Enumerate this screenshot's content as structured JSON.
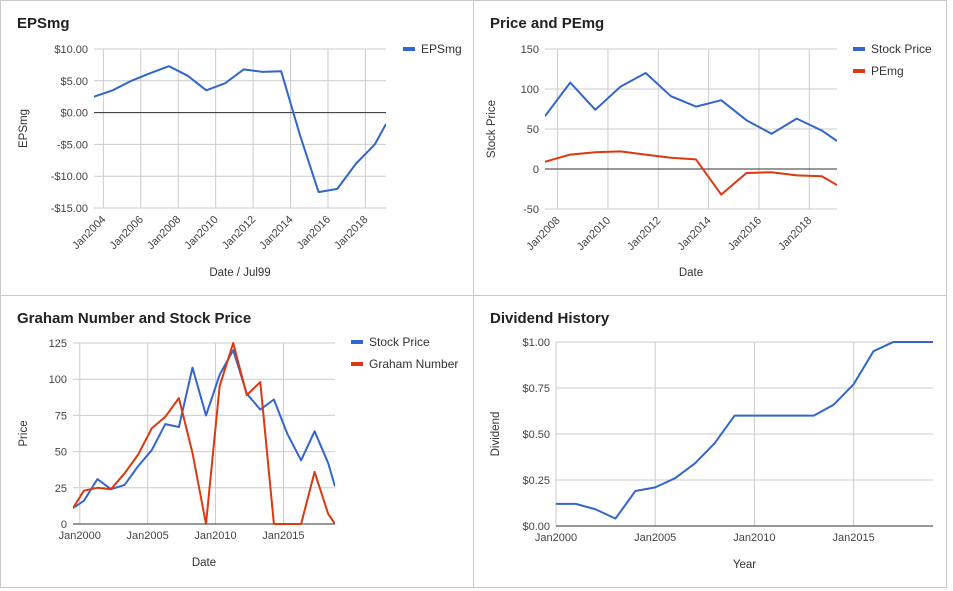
{
  "colors": {
    "blue": "#3366cc",
    "red": "#dc3912"
  },
  "chart_data": [
    {
      "type": "line",
      "title": "EPSmg",
      "xlabel": "Date / Jul99",
      "ylabel": "EPSmg",
      "ylim": [
        -15,
        10
      ],
      "xlim": [
        2003.5,
        2019.1
      ],
      "yticks": [
        10,
        5,
        0,
        -5,
        -10,
        -15
      ],
      "ytick_labels": [
        "$10.00",
        "$5.00",
        "$0.00",
        "-$5.00",
        "-$10.00",
        "-$15.00"
      ],
      "xticks": [
        2004,
        2006,
        2008,
        2010,
        2012,
        2014,
        2016,
        2018
      ],
      "xtick_labels": [
        "Jan2004",
        "Jan2006",
        "Jan2008",
        "Jan2010",
        "Jan2012",
        "Jan2014",
        "Jan2016",
        "Jan2018"
      ],
      "grid": true,
      "legend": "right",
      "series": [
        {
          "name": "EPSmg",
          "color": "#3366cc",
          "x": [
            2003.5,
            2004.5,
            2005.5,
            2006.5,
            2007.5,
            2008.5,
            2009.5,
            2010.5,
            2011.5,
            2012.5,
            2013.5,
            2014.5,
            2015.5,
            2016.5,
            2017.5,
            2018.5,
            2019.1
          ],
          "y": [
            2.5,
            3.5,
            5.0,
            6.2,
            7.3,
            5.8,
            3.5,
            4.6,
            6.8,
            6.4,
            6.5,
            -3.5,
            -12.5,
            -12.0,
            -8.0,
            -5.0,
            -1.8
          ]
        }
      ]
    },
    {
      "type": "line",
      "title": "Price and PEmg",
      "xlabel": "Date",
      "ylabel": "Stock Price",
      "ylim": [
        -50,
        150
      ],
      "xlim": [
        2007.5,
        2019.1
      ],
      "yticks": [
        150,
        100,
        50,
        0,
        -50
      ],
      "ytick_labels": [
        "150",
        "100",
        "50",
        "0",
        "-50"
      ],
      "xticks": [
        2008,
        2010,
        2012,
        2014,
        2016,
        2018
      ],
      "xtick_labels": [
        "Jan2008",
        "Jan2010",
        "Jan2012",
        "Jan2014",
        "Jan2016",
        "Jan2018"
      ],
      "grid": true,
      "legend": "right",
      "series": [
        {
          "name": "Stock Price",
          "color": "#3366cc",
          "x": [
            2007.5,
            2008.5,
            2009.5,
            2010.5,
            2011.5,
            2012.5,
            2013.5,
            2014.5,
            2015.5,
            2016.5,
            2017.5,
            2018.5,
            2019.1
          ],
          "y": [
            66,
            108,
            74,
            103,
            120,
            91,
            78,
            86,
            61,
            44,
            63,
            48,
            35
          ]
        },
        {
          "name": "PEmg",
          "color": "#dc3912",
          "x": [
            2007.5,
            2008.5,
            2009.5,
            2010.5,
            2011.5,
            2012.5,
            2013.5,
            2014.5,
            2015.5,
            2016.5,
            2017.5,
            2018.5,
            2019.1
          ],
          "y": [
            9,
            18,
            21,
            22,
            18,
            14,
            12,
            -32,
            -5,
            -4,
            -8,
            -9,
            -20
          ]
        }
      ]
    },
    {
      "type": "line",
      "title": "Graham Number and Stock Price",
      "xlabel": "Date",
      "ylabel": "Price",
      "ylim": [
        0,
        125
      ],
      "xlim": [
        1999.5,
        2018.8
      ],
      "yticks": [
        125,
        100,
        75,
        50,
        25,
        0
      ],
      "ytick_labels": [
        "125",
        "100",
        "75",
        "50",
        "25",
        "0"
      ],
      "xticks": [
        2000,
        2005,
        2010,
        2015
      ],
      "xtick_labels": [
        "Jan2000",
        "Jan2005",
        "Jan2010",
        "Jan2015"
      ],
      "grid": true,
      "legend": "right",
      "series": [
        {
          "name": "Stock Price",
          "color": "#3366cc",
          "x": [
            1999.5,
            2000.3,
            2001.3,
            2002.3,
            2003.3,
            2004.3,
            2005.3,
            2006.3,
            2007.3,
            2008.3,
            2009.3,
            2010.3,
            2011.3,
            2012.3,
            2013.3,
            2014.3,
            2015.3,
            2016.3,
            2017.3,
            2018.3,
            2018.8
          ],
          "y": [
            11,
            16,
            31,
            24,
            27,
            40,
            51,
            69,
            67,
            108,
            75,
            103,
            120,
            90,
            79,
            86,
            62,
            44,
            64,
            42,
            26
          ]
        },
        {
          "name": "Graham Number",
          "color": "#dc3912",
          "x": [
            1999.5,
            2000.3,
            2001.3,
            2002.3,
            2003.3,
            2004.3,
            2005.3,
            2006.3,
            2007.3,
            2008.3,
            2009.3,
            2010.3,
            2011.3,
            2012.3,
            2013.3,
            2014.3,
            2015.3,
            2016.3,
            2017.3,
            2018.3,
            2018.8
          ],
          "y": [
            11,
            23,
            25,
            24,
            35,
            48,
            66,
            74,
            87,
            49,
            0,
            95,
            125,
            89,
            98,
            0,
            0,
            0,
            36,
            7,
            0
          ]
        }
      ]
    },
    {
      "type": "line",
      "title": "Dividend History",
      "xlabel": "Year",
      "ylabel": "Dividend",
      "ylim": [
        0,
        1
      ],
      "xlim": [
        2000,
        2019
      ],
      "yticks": [
        1,
        0.75,
        0.5,
        0.25,
        0
      ],
      "ytick_labels": [
        "$1.00",
        "$0.75",
        "$0.50",
        "$0.25",
        "$0.00"
      ],
      "xticks": [
        2000,
        2005,
        2010,
        2015
      ],
      "xtick_labels": [
        "Jan2000",
        "Jan2005",
        "Jan2010",
        "Jan2015"
      ],
      "grid": true,
      "legend": "none",
      "series": [
        {
          "name": "",
          "color": "#3366cc",
          "x": [
            2000,
            2001,
            2002,
            2003,
            2004,
            2005,
            2006,
            2007,
            2008,
            2009,
            2010,
            2011,
            2012,
            2013,
            2014,
            2015,
            2016,
            2017,
            2018,
            2019
          ],
          "y": [
            0.12,
            0.12,
            0.09,
            0.04,
            0.19,
            0.21,
            0.26,
            0.34,
            0.45,
            0.6,
            0.6,
            0.6,
            0.6,
            0.6,
            0.66,
            0.77,
            0.95,
            1.0,
            1.0,
            1.0
          ]
        }
      ]
    }
  ]
}
